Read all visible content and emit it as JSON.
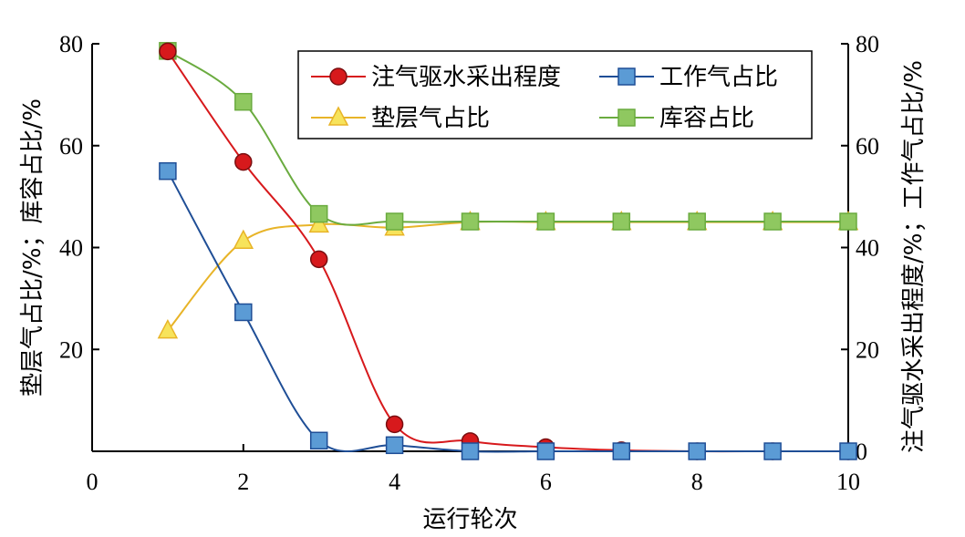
{
  "chart_data": {
    "type": "line",
    "xlabel": "运行轮次",
    "ylabel_left": "垫层气占比/%；库容占比/%",
    "ylabel_right": "注气驱水采出程度/%；工作气占比/%",
    "xlim": [
      0,
      10
    ],
    "ylim": [
      0,
      80
    ],
    "x_ticks": [
      0,
      2,
      4,
      6,
      8,
      10
    ],
    "y_ticks_left": [
      20,
      40,
      60,
      80
    ],
    "y_ticks_right": [
      0,
      20,
      40,
      60,
      80
    ],
    "grid": false,
    "legend_position": "top-right",
    "series": [
      {
        "name": "注气驱水采出程度",
        "color": "#d7191c",
        "marker": "circle",
        "x": [
          1,
          2,
          3,
          4,
          5,
          6,
          7,
          8,
          9,
          10
        ],
        "values": [
          78.5,
          56.8,
          37.7,
          5.3,
          2.0,
          0.8,
          0.2,
          0.0,
          0.0,
          0.0
        ]
      },
      {
        "name": "工作气占比",
        "color": "#1f4e96",
        "marker": "square",
        "x": [
          1,
          2,
          3,
          4,
          5,
          6,
          7,
          8,
          9,
          10
        ],
        "values": [
          55.0,
          27.3,
          2.1,
          1.2,
          0.0,
          0.0,
          0.0,
          0.0,
          0.0,
          0.0
        ]
      },
      {
        "name": "垫层气占比",
        "color": "#e8b428",
        "marker": "triangle",
        "x": [
          1,
          2,
          3,
          4,
          5,
          6,
          7,
          8,
          9,
          10
        ],
        "values": [
          23.7,
          41.3,
          44.5,
          43.9,
          45.0,
          45.0,
          45.0,
          45.0,
          45.0,
          45.0
        ]
      },
      {
        "name": "库容占比",
        "color": "#6aab3f",
        "marker": "square",
        "x": [
          1,
          2,
          3,
          4,
          5,
          6,
          7,
          8,
          9,
          10
        ],
        "values": [
          78.6,
          68.6,
          46.6,
          45.1,
          45.1,
          45.1,
          45.1,
          45.1,
          45.1,
          45.1
        ]
      }
    ]
  }
}
